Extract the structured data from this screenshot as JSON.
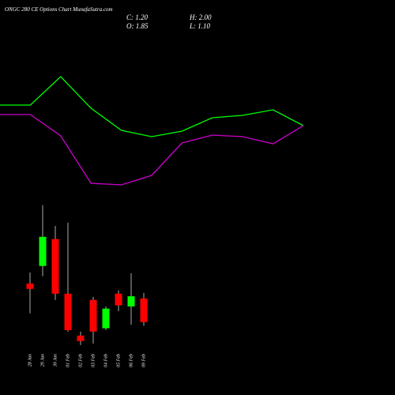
{
  "chart_data": [
    {
      "type": "line",
      "categories": [
        null,
        null,
        null,
        null,
        null,
        null,
        null,
        null,
        null,
        null,
        null
      ],
      "ylim": [
        0,
        160
      ],
      "series": [
        {
          "color": "#00ff00",
          "values": [
            117,
            117,
            153,
            113,
            85,
            77,
            84,
            101,
            104,
            111,
            91
          ]
        },
        {
          "color": "#cc00cc",
          "values": [
            105,
            105,
            78,
            18,
            16,
            28,
            69,
            79,
            77,
            68,
            91
          ]
        }
      ]
    },
    {
      "type": "candlestick",
      "title": "ONGC 280 CE Options Chart MunafaSutra.com",
      "quote": [
        "C: 1.20",
        "H: 2.00",
        "O: 1.85",
        "L: 1.10"
      ],
      "categories": [
        "28 Jan",
        "29 Jan",
        "30 Jan",
        "01 Feb",
        "02 Feb",
        "03 Feb",
        "04 Feb",
        "05 Feb",
        "06 Feb",
        "09 Feb"
      ],
      "open": [
        2.26,
        2.74,
        3.48,
        1.98,
        0.83,
        1.81,
        1.03,
        1.98,
        1.63,
        1.85
      ],
      "high": [
        2.56,
        4.41,
        3.84,
        3.93,
        0.94,
        1.89,
        1.63,
        2.07,
        2.54,
        2.0
      ],
      "low": [
        1.44,
        2.46,
        1.81,
        0.94,
        0.57,
        0.61,
        0.98,
        1.5,
        1.13,
        1.1
      ],
      "close": [
        2.11,
        3.54,
        1.98,
        0.98,
        0.68,
        0.94,
        1.57,
        1.66,
        1.91,
        1.2
      ],
      "up_color": "#00ff00",
      "down_color": "#ff0000",
      "wick_color": "#aaaaaa",
      "ylim": [
        0.5,
        4.62
      ]
    }
  ]
}
